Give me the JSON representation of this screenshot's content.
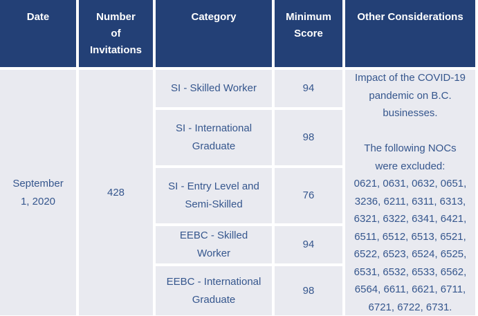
{
  "table": {
    "headers": {
      "date": "Date",
      "invitations": "Number\nof\nInvitations",
      "category": "Category",
      "min_score": "Minimum\nScore",
      "other": "Other Considerations"
    },
    "date": "September\n1, 2020",
    "invitations": "428",
    "rows": [
      {
        "category": "SI - Skilled Worker",
        "min_score": "94"
      },
      {
        "category": "SI - International Graduate",
        "min_score": "98"
      },
      {
        "category": "SI - Entry Level and Semi-Skilled",
        "min_score": "76"
      },
      {
        "category": "EEBC - Skilled Worker",
        "min_score": "94"
      },
      {
        "category": "EEBC - International Graduate",
        "min_score": "98"
      }
    ],
    "other_considerations": "Impact of the COVID-19\npandemic on B.C.\nbusinesses.\n\nThe following NOCs\nwere excluded:\n0621, 0631, 0632, 0651,\n3236, 6211, 6311, 6313,\n6321, 6322, 6341, 6421,\n6511, 6512, 6513, 6521,\n6522, 6523, 6524, 6525,\n6531, 6532, 6533, 6562,\n6564, 6611, 6621, 6711,\n6721, 6722, 6731."
  },
  "colors": {
    "header_bg": "#234076",
    "header_text": "#FFFFFF",
    "cell_bg": "#E9EAF0",
    "body_text": "#35568D"
  }
}
